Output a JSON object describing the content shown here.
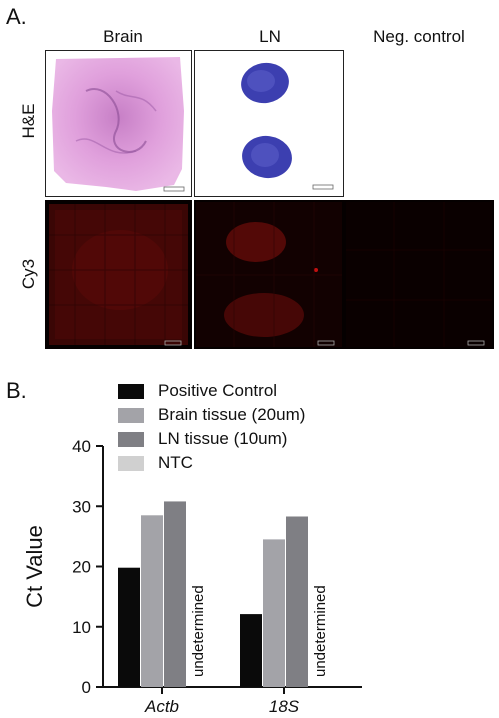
{
  "panel_a": {
    "letter": "A.",
    "columns": [
      "Brain",
      "LN",
      "Neg. control"
    ],
    "rows": [
      "H&E",
      "Cy3"
    ]
  },
  "panel_b": {
    "letter": "B."
  },
  "colors": {
    "positive_control": "#0a0a0a",
    "brain_tissue": "#a3a3a8",
    "ln_tissue": "#7f7f84",
    "ntc": "#d0d0d0",
    "he_stain": "#d98ad0",
    "ln_stain": "#3c3fb0",
    "cy3": "#5a0a08"
  },
  "chart_data": {
    "type": "bar",
    "categories": [
      "Actb",
      "18S"
    ],
    "series": [
      {
        "name": "Positive Control",
        "values": [
          19.8,
          12.1
        ]
      },
      {
        "name": "Brain tissue (20um)",
        "values": [
          28.5,
          24.5
        ]
      },
      {
        "name": "LN tissue (10um)",
        "values": [
          30.8,
          28.3
        ]
      },
      {
        "name": "NTC",
        "values": [
          null,
          null
        ]
      }
    ],
    "annotations": [
      "undetermined",
      "undetermined"
    ],
    "ylabel": "Ct Value",
    "xlabel": "",
    "ylim": [
      0,
      40
    ],
    "yticks": [
      0,
      10,
      20,
      30,
      40
    ],
    "legend_position": "top"
  }
}
